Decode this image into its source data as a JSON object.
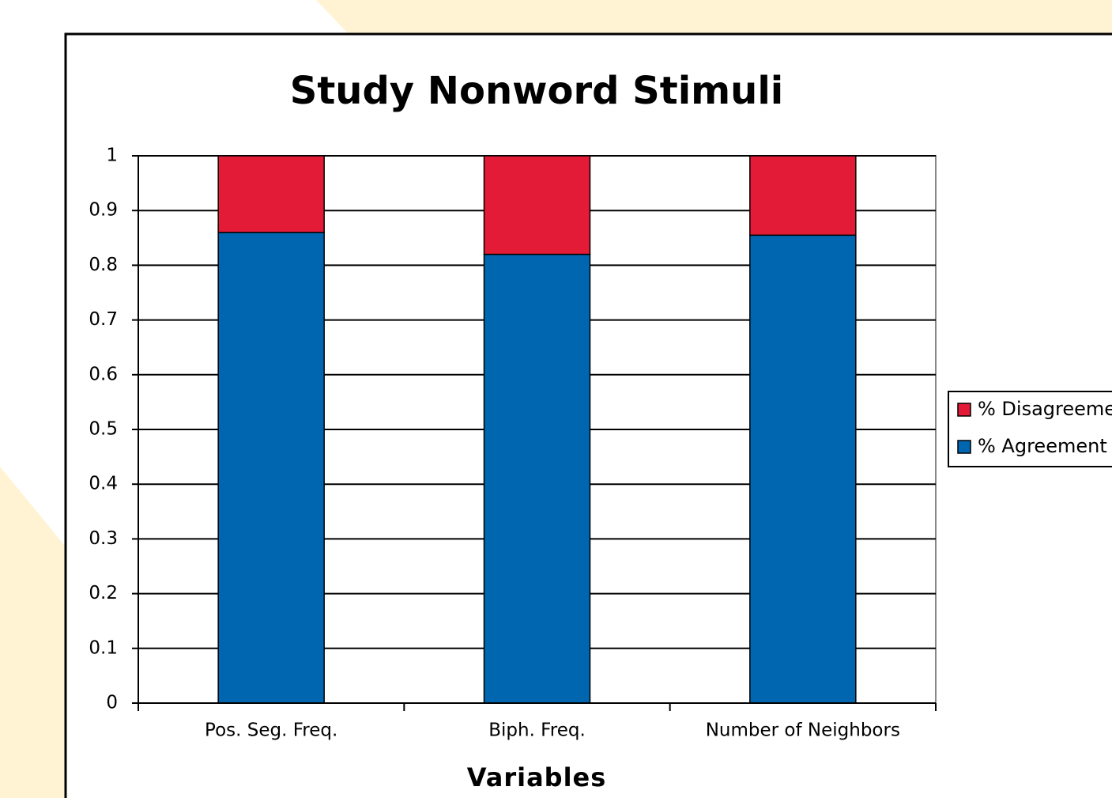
{
  "chart_data": {
    "type": "stacked-bar",
    "title": "Study Nonword Stimuli",
    "x_label": "Variables",
    "categories": [
      "Pos. Seg. Freq.",
      "Biph. Freq.",
      "Number of Neighbors"
    ],
    "series": [
      {
        "name": "% Agreement",
        "color": "#0066b0",
        "values": [
          0.86,
          0.82,
          0.855
        ]
      },
      {
        "name": "% Disagreement",
        "color": "#e31b37",
        "values": [
          0.14,
          0.18,
          0.145
        ]
      }
    ],
    "ylim": [
      0,
      1
    ],
    "yticks": [
      0,
      0.1,
      0.2,
      0.3,
      0.4,
      0.5,
      0.6,
      0.7,
      0.8,
      0.9,
      1
    ],
    "grid": true,
    "legend": "right"
  }
}
